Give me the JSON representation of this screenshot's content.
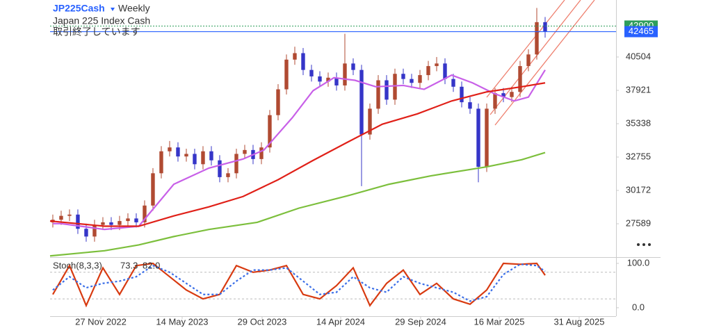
{
  "header": {
    "symbol": "JP225Cash",
    "interval": "Weekly",
    "name": "Japan 225 Index Cash",
    "status": "取引終了しています"
  },
  "chart_data": [
    {
      "type": "candlestick",
      "x": [
        0,
        1,
        2,
        3,
        4,
        5,
        6,
        7,
        8,
        9,
        10,
        11,
        12,
        13,
        14,
        15,
        16,
        17,
        18,
        19,
        20,
        21,
        22,
        23,
        24,
        25,
        26,
        27,
        28,
        29,
        30,
        31,
        32,
        33,
        34,
        35,
        36,
        37,
        38,
        39,
        40,
        41,
        42,
        43,
        44,
        45,
        46,
        47,
        48,
        49,
        50,
        51,
        52,
        53,
        54,
        55,
        56,
        57,
        58,
        59
      ],
      "open": [
        27700,
        27900,
        28200,
        28300,
        27200,
        26600,
        27500,
        27700,
        27500,
        27800,
        28000,
        27700,
        29000,
        31500,
        33200,
        33500,
        32800,
        33000,
        32200,
        33200,
        32500,
        31200,
        31500,
        33000,
        33300,
        32600,
        33500,
        36000,
        38000,
        40300,
        40800,
        39500,
        39000,
        38600,
        38900,
        38300,
        40000,
        39500,
        34500,
        36500,
        38700,
        37200,
        39200,
        38800,
        38500,
        39100,
        39800,
        40000,
        38800,
        38200,
        37000,
        36500,
        32000,
        36500,
        37700,
        37400,
        37800,
        39800,
        40700,
        43200
      ],
      "high": [
        28300,
        28600,
        28700,
        28700,
        27600,
        27900,
        28100,
        28100,
        28200,
        28400,
        28400,
        29400,
        31900,
        33600,
        34000,
        33900,
        33400,
        33400,
        33600,
        33600,
        32900,
        31900,
        33400,
        33700,
        33700,
        33900,
        36400,
        38400,
        40700,
        41300,
        41200,
        39900,
        39400,
        39300,
        39300,
        42300,
        40400,
        39900,
        36900,
        39100,
        39100,
        39600,
        39600,
        39200,
        39500,
        40200,
        40500,
        40400,
        39200,
        38600,
        37400,
        36900,
        36900,
        38100,
        38100,
        38200,
        40200,
        41100,
        44300,
        43600
      ],
      "low": [
        27300,
        27500,
        27800,
        26800,
        26200,
        26200,
        27100,
        27100,
        27100,
        27400,
        27300,
        27300,
        28600,
        31100,
        32800,
        32400,
        32400,
        31800,
        31800,
        32100,
        30800,
        30800,
        31100,
        32600,
        32200,
        32200,
        33100,
        35600,
        37600,
        39900,
        39100,
        38600,
        38200,
        38200,
        37900,
        37900,
        39100,
        30500,
        34100,
        36100,
        36800,
        36800,
        38400,
        38100,
        38100,
        38700,
        39400,
        38400,
        37800,
        36600,
        36100,
        30800,
        31600,
        36100,
        37000,
        37000,
        37400,
        39400,
        40300,
        42000
      ],
      "close": [
        27900,
        28200,
        28300,
        27200,
        26600,
        27500,
        27700,
        27500,
        27800,
        28000,
        27700,
        29000,
        31500,
        33200,
        33500,
        32800,
        33000,
        32200,
        33200,
        32500,
        31200,
        31500,
        33000,
        33300,
        32600,
        33500,
        36000,
        38000,
        40300,
        40800,
        39500,
        39000,
        38600,
        38900,
        38300,
        40000,
        39500,
        34500,
        36500,
        38700,
        37200,
        39200,
        38800,
        38500,
        39100,
        39800,
        40000,
        38800,
        38200,
        37000,
        36500,
        32000,
        36500,
        37700,
        37400,
        37800,
        39800,
        40700,
        43200,
        42465
      ],
      "up_color": "#b04a32",
      "down_color": "#3535c8",
      "series": [
        {
          "color": "#c860e8",
          "x": [
            0,
            1,
            6.2,
            10.3,
            14.5,
            18.7,
            22.8,
            25.3,
            28.7,
            31.2,
            33.7,
            36.2,
            38.7,
            42,
            44.5,
            47.8,
            50.3,
            52.8,
            55.3,
            57,
            59
          ],
          "values": [
            27600,
            27600,
            27150,
            27400,
            30650,
            31900,
            32600,
            33300,
            35800,
            37900,
            38900,
            38700,
            38200,
            38300,
            38000,
            39100,
            38500,
            37700,
            37100,
            37400,
            39500
          ]
        },
        {
          "color": "#e02018",
          "x": [
            -0.33,
            6.2,
            10.3,
            14.5,
            18.7,
            22.8,
            27,
            31.2,
            35.3,
            39.5,
            43.7,
            47.8,
            52,
            56.2,
            59
          ],
          "values": [
            27800,
            27400,
            27400,
            28200,
            28900,
            29700,
            31000,
            32500,
            33900,
            35300,
            36100,
            37100,
            37800,
            38200,
            38500
          ]
        },
        {
          "color": "#7cbf3c",
          "x": [
            -0.33,
            6.2,
            10.3,
            14.5,
            18.7,
            24.5,
            29.5,
            35.3,
            40.3,
            45.3,
            52,
            56.2,
            59
          ],
          "values": [
            25100,
            25500,
            25950,
            26600,
            27150,
            27700,
            28800,
            29750,
            30650,
            31300,
            32000,
            32550,
            33100
          ]
        }
      ],
      "last_price": 42465,
      "last_color": "#2962ff",
      "ask_price": 42900,
      "ask_color": "#2e9e5b",
      "xlim": [
        -0.33,
        67.5
      ],
      "ylim": [
        25006,
        44916
      ],
      "yticks": [
        40504,
        37921,
        35338,
        32755,
        30172,
        27589
      ],
      "xticks": [
        {
          "value": 5.75,
          "label": "27 Nov 2022"
        },
        {
          "value": 15.5,
          "label": "14 May 2023"
        },
        {
          "value": 25.08,
          "label": "29 Oct 2023"
        },
        {
          "value": 34.5,
          "label": "14 Apr 2024"
        },
        {
          "value": 44.08,
          "label": "29 Sep 2024"
        },
        {
          "value": 53.5,
          "label": "16 Mar 2025"
        },
        {
          "value": 63.08,
          "label": "31 Aug 2025"
        }
      ]
    },
    {
      "type": "line",
      "title": "Stoch(8,3,3)",
      "series": [
        {
          "color": "#d83a10",
          "dash": false,
          "x": [
            0,
            2,
            4,
            6,
            8,
            10,
            12,
            14,
            16,
            18,
            20,
            22,
            24,
            26,
            28,
            30,
            32,
            34,
            36,
            38,
            40,
            42,
            44,
            46,
            48,
            50,
            52,
            54,
            56,
            58,
            59
          ],
          "values": [
            30,
            95,
            5,
            90,
            30,
            95,
            100,
            70,
            40,
            20,
            30,
            95,
            80,
            85,
            95,
            30,
            20,
            50,
            90,
            5,
            55,
            85,
            30,
            55,
            20,
            8,
            40,
            100,
            98,
            100,
            73.3
          ]
        },
        {
          "color": "#3a6ee8",
          "dash": true,
          "x": [
            0,
            2,
            4,
            6,
            8,
            10,
            12,
            14,
            16,
            18,
            20,
            22,
            24,
            26,
            28,
            30,
            32,
            34,
            36,
            38,
            40,
            42,
            44,
            46,
            48,
            50,
            52,
            54,
            56,
            58,
            59
          ],
          "values": [
            40,
            70,
            45,
            55,
            60,
            70,
            95,
            80,
            55,
            30,
            30,
            60,
            85,
            85,
            90,
            60,
            30,
            35,
            70,
            45,
            35,
            70,
            55,
            45,
            35,
            15,
            25,
            75,
            98,
            95,
            82
          ],
          "value_labels": [
            null,
            null,
            null,
            null,
            null,
            null,
            null,
            null,
            null,
            null,
            null,
            null,
            null,
            null,
            null,
            null,
            null,
            null,
            null,
            null,
            null,
            null,
            null,
            null,
            null,
            null,
            null,
            null,
            null,
            null,
            "82.0"
          ]
        }
      ],
      "levels": [
        80,
        20
      ],
      "ylim": [
        -19,
        111
      ],
      "yticks": [
        {
          "value": 100,
          "label": "100.0"
        },
        {
          "value": 0,
          "label": "0.0"
        }
      ]
    }
  ]
}
